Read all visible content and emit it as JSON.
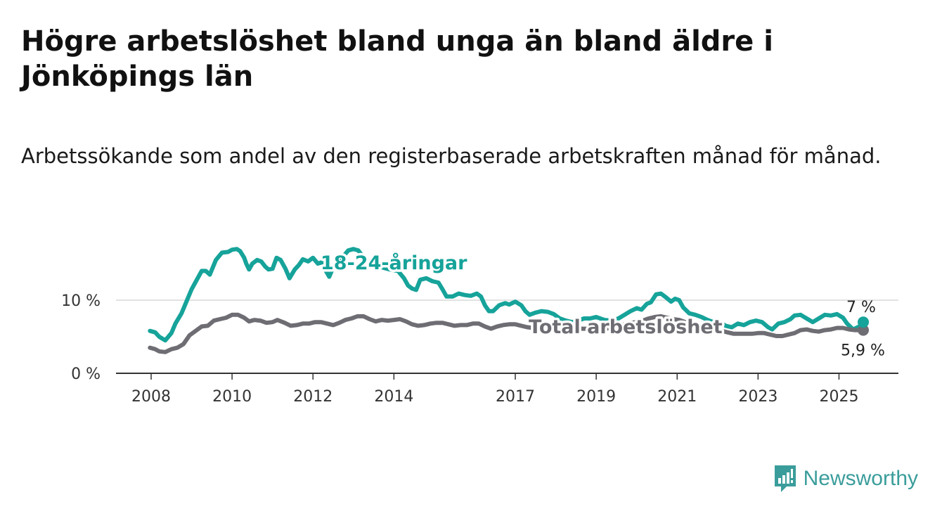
{
  "header": {
    "title": "Högre arbetslöshet bland unga än bland äldre i Jönköpings län",
    "subtitle": "Arbetssökande som andel av den registerbaserade arbetskraften månad för månad."
  },
  "brand": {
    "name": "Newsworthy",
    "icon": "bar-chart-icon",
    "color": "#3a9d9b"
  },
  "colors": {
    "youth": "#16a39a",
    "total": "#6d6d73",
    "grid": "#d9d9d9",
    "axis": "#333333"
  },
  "chart_data": {
    "type": "line",
    "xlabel": "",
    "ylabel": "",
    "xlim": [
      2008,
      2026.1
    ],
    "ylim": [
      0,
      17.5
    ],
    "x_ticks": [
      {
        "value": 2008,
        "label": "2008"
      },
      {
        "value": 2010,
        "label": "2010"
      },
      {
        "value": 2012,
        "label": "2012"
      },
      {
        "value": 2014,
        "label": "2014"
      },
      {
        "value": 2017,
        "label": "2017"
      },
      {
        "value": 2019,
        "label": "2019"
      },
      {
        "value": 2021,
        "label": "2021"
      },
      {
        "value": 2023,
        "label": "2023"
      },
      {
        "value": 2025,
        "label": "2025"
      }
    ],
    "y_ticks": [
      {
        "value": 0,
        "label": "0 %"
      },
      {
        "value": 10,
        "label": "10 %"
      }
    ],
    "grid": true,
    "series": [
      {
        "name": "18-24-åringar",
        "color": "#16a39a",
        "end_label": "7 %",
        "points": [
          [
            2007.97,
            5.8
          ],
          [
            2008.1,
            5.6
          ],
          [
            2008.2,
            5.0
          ],
          [
            2008.35,
            4.5
          ],
          [
            2008.5,
            5.5
          ],
          [
            2008.6,
            6.8
          ],
          [
            2008.75,
            8.2
          ],
          [
            2008.85,
            9.5
          ],
          [
            2009.0,
            11.5
          ],
          [
            2009.1,
            12.5
          ],
          [
            2009.25,
            14.0
          ],
          [
            2009.35,
            14.0
          ],
          [
            2009.45,
            13.5
          ],
          [
            2009.6,
            15.5
          ],
          [
            2009.75,
            16.5
          ],
          [
            2009.9,
            16.6
          ],
          [
            2010.0,
            16.9
          ],
          [
            2010.12,
            17.0
          ],
          [
            2010.2,
            16.7
          ],
          [
            2010.3,
            15.8
          ],
          [
            2010.35,
            15.0
          ],
          [
            2010.42,
            14.2
          ],
          [
            2010.5,
            15.0
          ],
          [
            2010.62,
            15.5
          ],
          [
            2010.72,
            15.3
          ],
          [
            2010.82,
            14.6
          ],
          [
            2010.9,
            14.2
          ],
          [
            2011.0,
            14.3
          ],
          [
            2011.1,
            15.8
          ],
          [
            2011.2,
            15.5
          ],
          [
            2011.32,
            14.3
          ],
          [
            2011.42,
            13.0
          ],
          [
            2011.55,
            14.2
          ],
          [
            2011.65,
            14.8
          ],
          [
            2011.75,
            15.6
          ],
          [
            2011.88,
            15.3
          ],
          [
            2012.0,
            15.8
          ],
          [
            2012.12,
            15.0
          ],
          [
            2012.22,
            15.2
          ],
          [
            2012.32,
            14.0
          ],
          [
            2012.4,
            13.2
          ],
          [
            2012.5,
            14.5
          ],
          [
            2012.6,
            15.2
          ],
          [
            2012.75,
            16.0
          ],
          [
            2012.87,
            16.8
          ],
          [
            2013.0,
            17.0
          ],
          [
            2013.12,
            16.8
          ],
          [
            2013.3,
            15.5
          ],
          [
            2013.5,
            15.0
          ],
          [
            2013.7,
            14.5
          ],
          [
            2013.9,
            14.2
          ],
          [
            2014.1,
            14.0
          ],
          [
            2014.25,
            13.0
          ],
          [
            2014.35,
            12.0
          ],
          [
            2014.45,
            11.6
          ],
          [
            2014.55,
            11.4
          ],
          [
            2014.65,
            12.8
          ],
          [
            2014.8,
            13.0
          ],
          [
            2014.95,
            12.6
          ],
          [
            2015.1,
            12.4
          ],
          [
            2015.2,
            11.5
          ],
          [
            2015.3,
            10.5
          ],
          [
            2015.45,
            10.5
          ],
          [
            2015.6,
            10.9
          ],
          [
            2015.75,
            10.7
          ],
          [
            2015.9,
            10.6
          ],
          [
            2016.05,
            10.9
          ],
          [
            2016.15,
            10.5
          ],
          [
            2016.25,
            9.3
          ],
          [
            2016.35,
            8.5
          ],
          [
            2016.45,
            8.5
          ],
          [
            2016.6,
            9.3
          ],
          [
            2016.75,
            9.6
          ],
          [
            2016.85,
            9.4
          ],
          [
            2017.0,
            9.8
          ],
          [
            2017.15,
            9.3
          ],
          [
            2017.25,
            8.5
          ],
          [
            2017.35,
            8.0
          ],
          [
            2017.5,
            8.3
          ],
          [
            2017.65,
            8.5
          ],
          [
            2017.8,
            8.4
          ],
          [
            2017.95,
            8.1
          ],
          [
            2018.1,
            7.5
          ],
          [
            2018.25,
            7.2
          ],
          [
            2018.4,
            7.0
          ],
          [
            2018.55,
            7.2
          ],
          [
            2018.7,
            7.5
          ],
          [
            2018.85,
            7.5
          ],
          [
            2019.0,
            7.7
          ],
          [
            2019.2,
            7.3
          ],
          [
            2019.4,
            7.2
          ],
          [
            2019.55,
            7.5
          ],
          [
            2019.7,
            8.0
          ],
          [
            2019.85,
            8.5
          ],
          [
            2020.0,
            8.9
          ],
          [
            2020.12,
            8.7
          ],
          [
            2020.25,
            9.5
          ],
          [
            2020.35,
            9.7
          ],
          [
            2020.48,
            10.8
          ],
          [
            2020.6,
            10.9
          ],
          [
            2020.72,
            10.4
          ],
          [
            2020.85,
            9.8
          ],
          [
            2020.95,
            10.2
          ],
          [
            2021.05,
            10.0
          ],
          [
            2021.15,
            9.0
          ],
          [
            2021.3,
            8.2
          ],
          [
            2021.45,
            8.0
          ],
          [
            2021.6,
            7.7
          ],
          [
            2021.75,
            7.3
          ],
          [
            2021.9,
            7.0
          ],
          [
            2022.05,
            7.0
          ],
          [
            2022.2,
            6.5
          ],
          [
            2022.35,
            6.3
          ],
          [
            2022.5,
            6.8
          ],
          [
            2022.65,
            6.6
          ],
          [
            2022.8,
            7.0
          ],
          [
            2022.95,
            7.2
          ],
          [
            2023.1,
            7.0
          ],
          [
            2023.25,
            6.3
          ],
          [
            2023.35,
            6.0
          ],
          [
            2023.5,
            6.8
          ],
          [
            2023.65,
            7.0
          ],
          [
            2023.8,
            7.4
          ],
          [
            2023.9,
            7.9
          ],
          [
            2024.05,
            8.0
          ],
          [
            2024.2,
            7.5
          ],
          [
            2024.35,
            7.0
          ],
          [
            2024.5,
            7.5
          ],
          [
            2024.65,
            8.0
          ],
          [
            2024.8,
            7.9
          ],
          [
            2024.95,
            8.1
          ],
          [
            2025.1,
            7.6
          ],
          [
            2025.2,
            6.8
          ],
          [
            2025.35,
            6.0
          ],
          [
            2025.5,
            6.4
          ],
          [
            2025.6,
            7.0
          ]
        ]
      },
      {
        "name": "Total arbetslöshet",
        "color": "#6d6d73",
        "end_label": "5,9 %",
        "points": [
          [
            2007.97,
            3.5
          ],
          [
            2008.1,
            3.3
          ],
          [
            2008.2,
            3.0
          ],
          [
            2008.35,
            2.9
          ],
          [
            2008.5,
            3.3
          ],
          [
            2008.65,
            3.5
          ],
          [
            2008.8,
            4.0
          ],
          [
            2008.95,
            5.2
          ],
          [
            2009.1,
            5.8
          ],
          [
            2009.25,
            6.4
          ],
          [
            2009.4,
            6.5
          ],
          [
            2009.55,
            7.2
          ],
          [
            2009.7,
            7.4
          ],
          [
            2009.85,
            7.6
          ],
          [
            2010.0,
            8.0
          ],
          [
            2010.15,
            8.0
          ],
          [
            2010.3,
            7.6
          ],
          [
            2010.42,
            7.1
          ],
          [
            2010.55,
            7.3
          ],
          [
            2010.7,
            7.2
          ],
          [
            2010.85,
            6.9
          ],
          [
            2011.0,
            7.0
          ],
          [
            2011.12,
            7.3
          ],
          [
            2011.3,
            6.9
          ],
          [
            2011.45,
            6.5
          ],
          [
            2011.6,
            6.6
          ],
          [
            2011.75,
            6.8
          ],
          [
            2011.9,
            6.8
          ],
          [
            2012.05,
            7.0
          ],
          [
            2012.2,
            7.0
          ],
          [
            2012.35,
            6.8
          ],
          [
            2012.5,
            6.6
          ],
          [
            2012.65,
            6.9
          ],
          [
            2012.8,
            7.3
          ],
          [
            2012.95,
            7.5
          ],
          [
            2013.1,
            7.8
          ],
          [
            2013.25,
            7.8
          ],
          [
            2013.4,
            7.4
          ],
          [
            2013.55,
            7.1
          ],
          [
            2013.7,
            7.3
          ],
          [
            2013.85,
            7.2
          ],
          [
            2014.0,
            7.3
          ],
          [
            2014.15,
            7.4
          ],
          [
            2014.3,
            7.1
          ],
          [
            2014.45,
            6.7
          ],
          [
            2014.6,
            6.5
          ],
          [
            2014.75,
            6.6
          ],
          [
            2014.9,
            6.8
          ],
          [
            2015.05,
            6.9
          ],
          [
            2015.2,
            6.9
          ],
          [
            2015.35,
            6.7
          ],
          [
            2015.5,
            6.5
          ],
          [
            2015.65,
            6.6
          ],
          [
            2015.8,
            6.6
          ],
          [
            2015.95,
            6.8
          ],
          [
            2016.1,
            6.8
          ],
          [
            2016.25,
            6.4
          ],
          [
            2016.4,
            6.1
          ],
          [
            2016.55,
            6.4
          ],
          [
            2016.7,
            6.6
          ],
          [
            2016.85,
            6.7
          ],
          [
            2017.0,
            6.7
          ],
          [
            2017.15,
            6.5
          ],
          [
            2017.3,
            6.3
          ],
          [
            2017.45,
            6.2
          ],
          [
            2017.6,
            6.3
          ],
          [
            2017.75,
            6.5
          ],
          [
            2017.9,
            6.4
          ],
          [
            2018.05,
            6.2
          ],
          [
            2018.2,
            6.0
          ],
          [
            2018.35,
            6.1
          ],
          [
            2018.5,
            6.2
          ],
          [
            2018.65,
            6.1
          ],
          [
            2018.8,
            6.1
          ],
          [
            2018.95,
            6.2
          ],
          [
            2019.1,
            6.2
          ],
          [
            2019.25,
            6.1
          ],
          [
            2019.4,
            6.3
          ],
          [
            2019.55,
            6.5
          ],
          [
            2019.7,
            6.7
          ],
          [
            2019.85,
            6.9
          ],
          [
            2020.0,
            7.0
          ],
          [
            2020.15,
            7.2
          ],
          [
            2020.3,
            7.5
          ],
          [
            2020.45,
            7.7
          ],
          [
            2020.6,
            7.8
          ],
          [
            2020.75,
            7.6
          ],
          [
            2020.9,
            7.4
          ],
          [
            2021.05,
            7.3
          ],
          [
            2021.2,
            7.0
          ],
          [
            2021.35,
            6.7
          ],
          [
            2021.5,
            6.4
          ],
          [
            2021.65,
            6.2
          ],
          [
            2021.8,
            6.0
          ],
          [
            2021.95,
            5.9
          ],
          [
            2022.1,
            5.8
          ],
          [
            2022.25,
            5.6
          ],
          [
            2022.4,
            5.4
          ],
          [
            2022.55,
            5.4
          ],
          [
            2022.7,
            5.4
          ],
          [
            2022.85,
            5.4
          ],
          [
            2023.0,
            5.5
          ],
          [
            2023.15,
            5.5
          ],
          [
            2023.3,
            5.3
          ],
          [
            2023.45,
            5.1
          ],
          [
            2023.6,
            5.1
          ],
          [
            2023.75,
            5.3
          ],
          [
            2023.9,
            5.5
          ],
          [
            2024.05,
            5.9
          ],
          [
            2024.2,
            6.0
          ],
          [
            2024.35,
            5.8
          ],
          [
            2024.5,
            5.7
          ],
          [
            2024.65,
            5.9
          ],
          [
            2024.8,
            6.0
          ],
          [
            2024.95,
            6.2
          ],
          [
            2025.1,
            6.2
          ],
          [
            2025.25,
            6.0
          ],
          [
            2025.4,
            5.9
          ],
          [
            2025.6,
            5.9
          ]
        ]
      }
    ]
  }
}
